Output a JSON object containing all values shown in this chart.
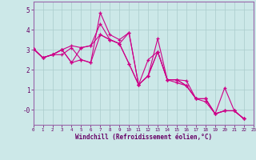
{
  "xlabel": "Windchill (Refroidissement éolien,°C)",
  "bg_color": "#cce8e8",
  "line_color": "#cc0088",
  "grid_color": "#aacccc",
  "axis_color": "#9966aa",
  "xlim": [
    0,
    23
  ],
  "ylim": [
    -0.75,
    5.4
  ],
  "xtick_vals": [
    0,
    1,
    2,
    3,
    4,
    5,
    6,
    7,
    8,
    9,
    10,
    11,
    12,
    13,
    14,
    15,
    16,
    17,
    18,
    19,
    20,
    21,
    22,
    23
  ],
  "ytick_vals": [
    0,
    1,
    2,
    3,
    4,
    5
  ],
  "ytick_labels": [
    "-0",
    "1",
    "2",
    "3",
    "4",
    "5"
  ],
  "series": [
    [
      3.05,
      2.6,
      2.75,
      2.75,
      3.1,
      2.5,
      2.35,
      4.85,
      3.75,
      3.5,
      3.85,
      1.25,
      1.7,
      3.55,
      1.5,
      1.5,
      1.45,
      0.55,
      0.55,
      -0.2,
      -0.05,
      -0.05,
      -0.45
    ],
    [
      3.05,
      2.6,
      2.75,
      3.0,
      3.2,
      3.1,
      3.2,
      4.3,
      3.5,
      3.3,
      3.85,
      1.25,
      1.7,
      2.9,
      1.5,
      1.5,
      1.2,
      0.55,
      0.55,
      -0.2,
      1.1,
      -0.05,
      -0.45
    ],
    [
      3.05,
      2.6,
      2.75,
      3.0,
      2.35,
      3.1,
      3.2,
      3.75,
      3.5,
      3.3,
      2.3,
      1.25,
      1.7,
      2.9,
      1.5,
      1.5,
      1.2,
      0.55,
      0.55,
      -0.2,
      -0.05,
      -0.05,
      -0.45
    ],
    [
      3.05,
      2.6,
      2.75,
      3.0,
      2.35,
      2.5,
      2.35,
      3.75,
      3.5,
      3.3,
      2.3,
      1.25,
      2.5,
      2.9,
      1.5,
      1.35,
      1.2,
      0.55,
      0.4,
      -0.2,
      -0.05,
      -0.05,
      -0.45
    ]
  ],
  "marker": "+",
  "markersize": 3.5,
  "linewidth": 0.8
}
